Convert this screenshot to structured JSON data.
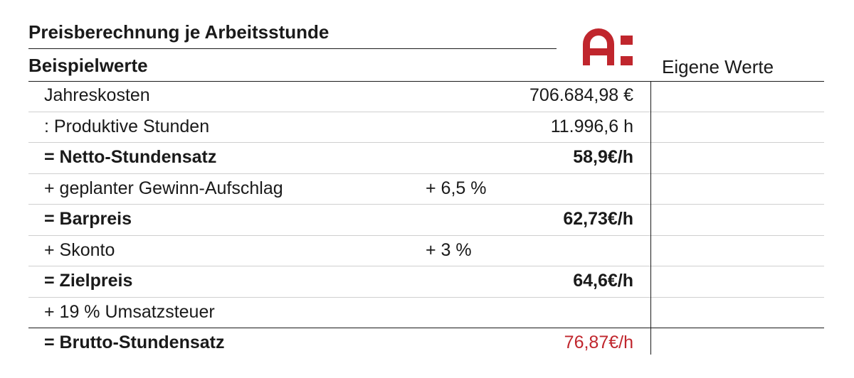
{
  "header": {
    "title": "Preisberechnung je Arbeitsstunde",
    "subtitle": "Beispielwerte",
    "own_values": "Eigene Werte",
    "logo_text": "A:"
  },
  "rows": [
    {
      "label": "Jahreskosten",
      "pct": "",
      "value": "706.684,98 €"
    },
    {
      "label": ":  Produktive Stunden",
      "pct": "",
      "value": "11.996,6 h"
    },
    {
      "label": "= Netto-Stundensatz",
      "pct": "",
      "value": "58,9€/h"
    },
    {
      "label": "+ geplanter Gewinn-Aufschlag",
      "pct": "+ 6,5 %",
      "value": ""
    },
    {
      "label": "= Barpreis",
      "pct": "",
      "value": "62,73€/h"
    },
    {
      "label": "+ Skonto",
      "pct": "+ 3 %",
      "value": ""
    },
    {
      "label": "= Zielpreis",
      "pct": "",
      "value": "64,6€/h"
    },
    {
      "label": "+ 19 % Umsatzsteuer",
      "pct": "",
      "value": ""
    },
    {
      "label": "= Brutto-Stundensatz",
      "pct": "",
      "value": "76,87€/h"
    }
  ],
  "colors": {
    "accent": "#c0262d",
    "text": "#1a1a1a",
    "row_divider": "#cfcfcf"
  }
}
